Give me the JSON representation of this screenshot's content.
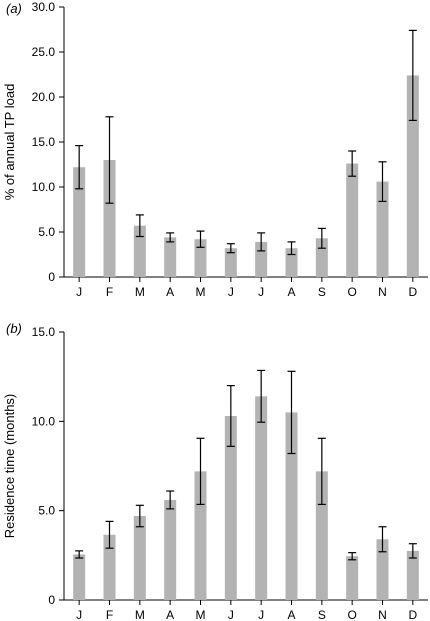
{
  "colors": {
    "bar": "#b3b3b3",
    "axis": "#000000"
  },
  "chart_data": [
    {
      "type": "bar",
      "panel_label": "(a)",
      "ylabel": "% of annual TP load",
      "xlabel": "",
      "categories": [
        "J",
        "F",
        "M",
        "A",
        "M",
        "J",
        "J",
        "A",
        "S",
        "O",
        "N",
        "D"
      ],
      "values": [
        12.2,
        13.0,
        5.7,
        4.4,
        4.2,
        3.2,
        3.9,
        3.2,
        4.3,
        12.6,
        10.6,
        22.4
      ],
      "error": [
        2.4,
        4.8,
        1.2,
        0.5,
        0.9,
        0.5,
        1.0,
        0.7,
        1.1,
        1.4,
        2.2,
        5.0
      ],
      "ylim": [
        0,
        30
      ],
      "yticks": [
        "0",
        "5.0",
        "10.0",
        "15.0",
        "20.0",
        "25.0",
        "30.0"
      ],
      "grid": false
    },
    {
      "type": "bar",
      "panel_label": "(b)",
      "ylabel": "Residence time (months)",
      "xlabel": "",
      "categories": [
        "J",
        "F",
        "M",
        "A",
        "M",
        "J",
        "J",
        "A",
        "S",
        "O",
        "N",
        "D"
      ],
      "values": [
        2.55,
        3.65,
        4.7,
        5.6,
        7.2,
        10.3,
        11.4,
        10.5,
        7.2,
        2.45,
        3.4,
        2.75
      ],
      "error": [
        0.2,
        0.75,
        0.6,
        0.5,
        1.85,
        1.7,
        1.45,
        2.3,
        1.85,
        0.2,
        0.7,
        0.4
      ],
      "ylim": [
        0,
        15
      ],
      "yticks": [
        "0",
        "5.0",
        "10.0",
        "15.0"
      ],
      "grid": false
    }
  ]
}
